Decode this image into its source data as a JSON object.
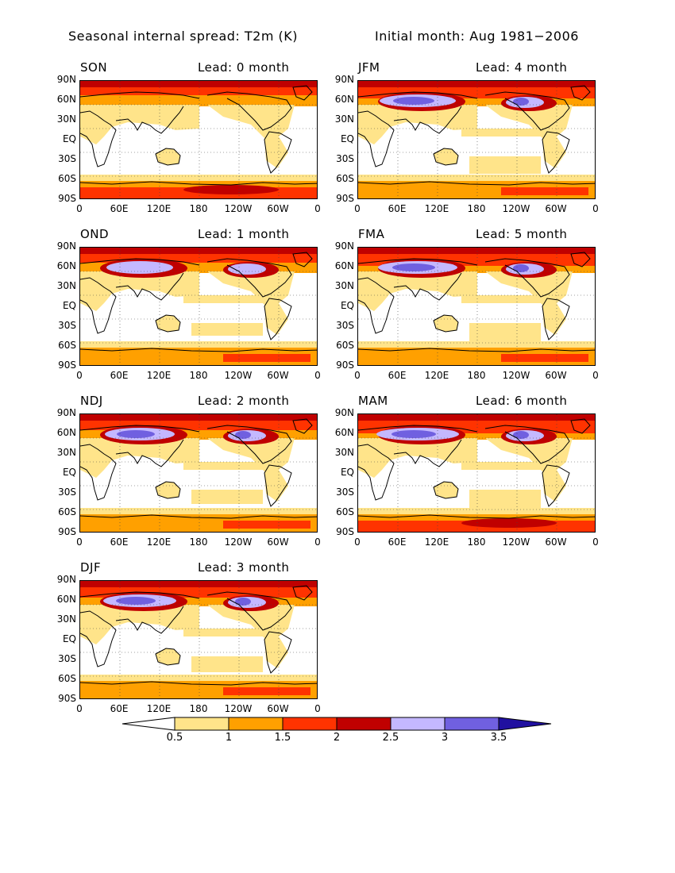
{
  "header": {
    "left_title": "Seasonal internal spread: T2m (K)",
    "right_title": "Initial month: Aug 1981−2006"
  },
  "axes": {
    "lat_ticks": [
      "90N",
      "60N",
      "30N",
      "EQ",
      "30S",
      "60S",
      "90S"
    ],
    "lon_ticks": [
      "0",
      "60E",
      "120E",
      "180",
      "120W",
      "60W",
      "0"
    ]
  },
  "panels": [
    {
      "season": "SON",
      "lead": "Lead: 0 month",
      "lead_months": 0
    },
    {
      "season": "JFM",
      "lead": "Lead: 4 month",
      "lead_months": 4
    },
    {
      "season": "OND",
      "lead": "Lead: 1 month",
      "lead_months": 1
    },
    {
      "season": "FMA",
      "lead": "Lead: 5 month",
      "lead_months": 5
    },
    {
      "season": "NDJ",
      "lead": "Lead: 2 month",
      "lead_months": 2
    },
    {
      "season": "MAM",
      "lead": "Lead: 6 month",
      "lead_months": 6
    },
    {
      "season": "DJF",
      "lead": "Lead: 3 month",
      "lead_months": 3
    }
  ],
  "colorbar": {
    "labels": [
      "0.5",
      "1",
      "1.5",
      "2",
      "2.5",
      "3",
      "3.5"
    ],
    "colors": [
      "#ffffff",
      "#ffe48a",
      "#ffa000",
      "#ff3300",
      "#c00000",
      "#c4b8ff",
      "#7060e0",
      "#2010a0"
    ]
  }
}
